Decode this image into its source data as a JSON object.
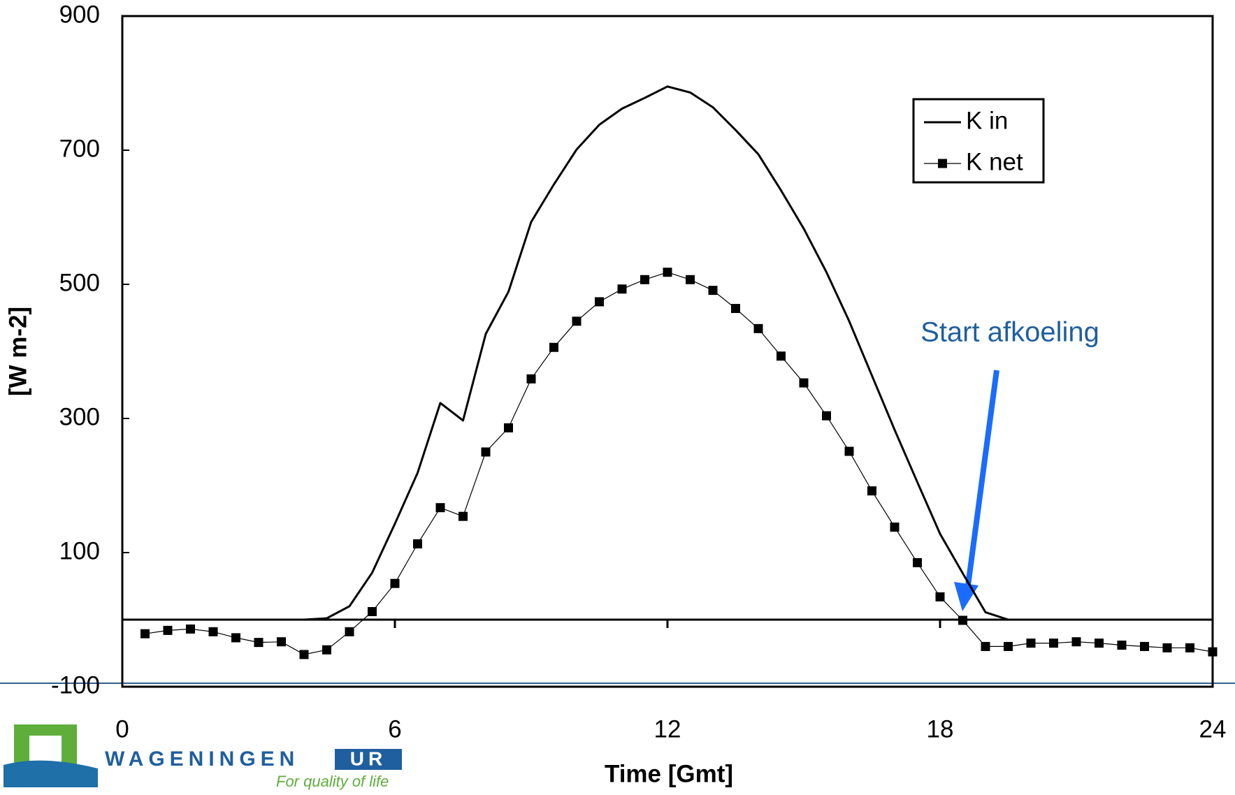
{
  "chart_data": {
    "type": "line",
    "x_label": "Time [Gmt]",
    "y_label": "[W m-2]",
    "annotation": "Start afkoeling",
    "x": [
      0.5,
      1,
      1.5,
      2,
      2.5,
      3,
      3.5,
      4,
      4.5,
      5,
      5.5,
      6,
      6.5,
      7,
      7.5,
      8,
      8.5,
      9,
      9.5,
      10,
      10.5,
      11,
      11.5,
      12,
      12.5,
      13,
      13.5,
      14,
      14.5,
      15,
      15.5,
      16,
      16.5,
      17,
      17.5,
      18,
      18.5,
      19,
      19.5,
      20,
      20.5,
      21,
      21.5,
      22,
      22.5,
      23,
      23.5,
      24
    ],
    "series": [
      {
        "name": "K in",
        "color": "#000000",
        "marker": "none",
        "values": [
          0,
          0,
          0,
          0,
          0,
          0,
          0,
          0,
          2,
          20,
          70,
          143,
          219,
          323,
          297,
          426,
          489,
          593,
          649,
          701,
          738,
          762,
          778,
          795,
          786,
          764,
          730,
          694,
          640,
          583,
          518,
          445,
          364,
          283,
          205,
          128,
          69,
          11,
          0,
          0,
          0,
          0,
          0,
          0,
          0,
          0,
          0,
          0
        ]
      },
      {
        "name": "K net",
        "color": "#000000",
        "marker": "square",
        "values": [
          -21,
          -16,
          -14,
          -18,
          -27,
          -34,
          -33,
          -52,
          -45,
          -18,
          12,
          54,
          113,
          167,
          154,
          250,
          286,
          359,
          406,
          445,
          474,
          493,
          507,
          518,
          507,
          491,
          464,
          434,
          393,
          353,
          304,
          251,
          192,
          138,
          85,
          34,
          -1,
          -40,
          -40,
          -35,
          -35,
          -33,
          -35,
          -38,
          -40,
          -42,
          -42,
          -48
        ]
      }
    ],
    "xlim": [
      0,
      24
    ],
    "xticks": [
      0,
      6,
      12,
      18,
      24
    ],
    "ylim": [
      -100,
      900
    ],
    "yticks": [
      -100,
      100,
      300,
      500,
      700,
      900
    ],
    "grid": false,
    "legend": "upper right"
  },
  "logo": {
    "name": "WAGENINGEN",
    "suffix": "UR",
    "tagline": "For quality of life"
  }
}
